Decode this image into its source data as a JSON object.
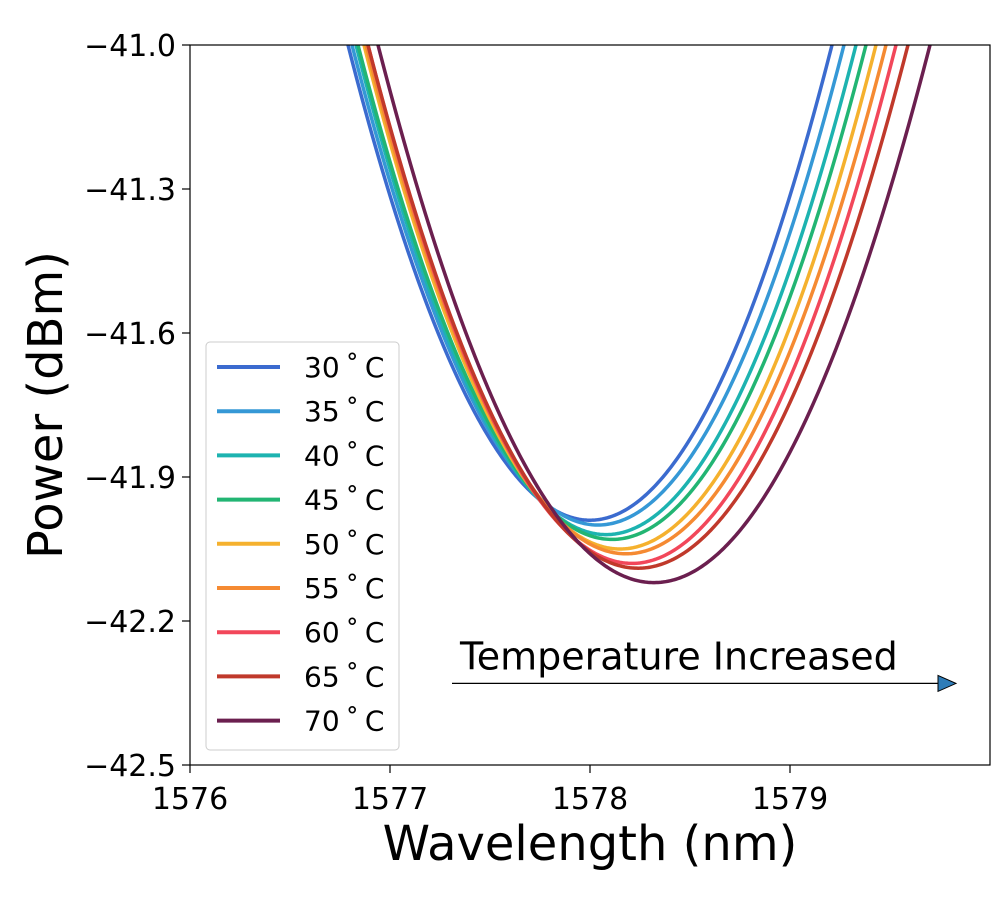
{
  "chart_data": {
    "type": "line",
    "title": "",
    "xlabel": "Wavelength (nm)",
    "ylabel": "Power (dBm)",
    "xlim": [
      1576,
      1580
    ],
    "ylim": [
      -42.5,
      -41.0
    ],
    "xticks": [
      1576,
      1577,
      1578,
      1579
    ],
    "xtick_labels": [
      "1576",
      "1577",
      "1578",
      "1579"
    ],
    "yticks": [
      -41.0,
      -41.3,
      -41.6,
      -41.9,
      -42.2,
      -42.5
    ],
    "ytick_labels": [
      "−41.0",
      "−41.3",
      "−41.6",
      "−41.9",
      "−42.2",
      "−42.5"
    ],
    "grid": false,
    "legend_position": "lower-left",
    "series": [
      {
        "name": "30°C",
        "label": "30 ˚ C",
        "color": "#3b6bcf",
        "center": 1578.0,
        "min": -41.99,
        "width": 1.21
      },
      {
        "name": "35°C",
        "label": "35 ˚ C",
        "color": "#3598d6",
        "center": 1578.04,
        "min": -42.0,
        "width": 1.23
      },
      {
        "name": "40°C",
        "label": "40 ˚ C",
        "color": "#1db3b0",
        "center": 1578.08,
        "min": -42.02,
        "width": 1.25
      },
      {
        "name": "45°C",
        "label": "45 ˚ C",
        "color": "#22b573",
        "center": 1578.11,
        "min": -42.03,
        "width": 1.27
      },
      {
        "name": "50°C",
        "label": "50 ˚ C",
        "color": "#f5b12e",
        "center": 1578.15,
        "min": -42.05,
        "width": 1.28
      },
      {
        "name": "55°C",
        "label": "55 ˚ C",
        "color": "#f58a32",
        "center": 1578.18,
        "min": -42.06,
        "width": 1.3
      },
      {
        "name": "60°C",
        "label": "60 ˚ C",
        "color": "#f2475a",
        "center": 1578.21,
        "min": -42.08,
        "width": 1.32
      },
      {
        "name": "65°C",
        "label": "65 ˚ C",
        "color": "#c0392b",
        "center": 1578.24,
        "min": -42.09,
        "width": 1.35
      },
      {
        "name": "70°C",
        "label": "70 ˚ C",
        "color": "#6b1f4f",
        "center": 1578.32,
        "min": -42.12,
        "width": 1.38
      }
    ],
    "annotations": [
      {
        "text": "Temperature Increased",
        "arrow_from_x": 1577.31,
        "arrow_to_x": 1579.83,
        "arrow_y": -42.33,
        "arrow_color": "#2e7cb8"
      }
    ]
  }
}
